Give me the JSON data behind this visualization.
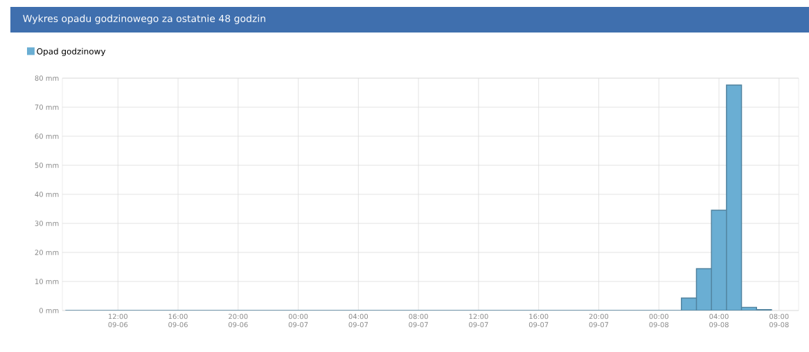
{
  "chart_data": {
    "type": "bar",
    "title": "Wykres opadu godzinowego za ostatnie 48 godzin",
    "categories": [
      null,
      null,
      null,
      "12:00 09-06",
      null,
      null,
      null,
      "16:00 09-06",
      null,
      null,
      null,
      "20:00 09-06",
      null,
      null,
      null,
      "00:00 09-07",
      null,
      null,
      null,
      "04:00 09-07",
      null,
      null,
      null,
      "08:00 09-07",
      null,
      null,
      null,
      "12:00 09-07",
      null,
      null,
      null,
      "16:00 09-07",
      null,
      null,
      null,
      "20:00 09-07",
      null,
      null,
      null,
      "00:00 09-08",
      null,
      null,
      null,
      "04:00 09-08",
      null,
      null,
      null,
      "08:00 09-08"
    ],
    "series": [
      {
        "name": "Opad godzinowy",
        "color": "#6aaed3",
        "values": [
          0,
          0,
          0,
          0,
          0,
          0,
          0,
          0,
          0,
          0,
          0,
          0,
          0,
          0,
          0,
          0,
          0,
          0,
          0,
          0,
          0,
          0,
          0,
          0,
          0,
          0,
          0,
          0,
          0,
          0,
          0,
          0,
          0,
          0,
          0,
          0,
          0,
          0,
          0,
          0,
          0,
          4.3,
          14.4,
          34.5,
          77.6,
          1.1,
          0.3,
          null
        ]
      }
    ],
    "ylim": [
      0,
      80
    ],
    "yticks": [
      {
        "value": 0,
        "label": "0 mm"
      },
      {
        "value": 10,
        "label": "10 mm"
      },
      {
        "value": 20,
        "label": "20 mm"
      },
      {
        "value": 30,
        "label": "30 mm"
      },
      {
        "value": 40,
        "label": "40 mm"
      },
      {
        "value": 50,
        "label": "50 mm"
      },
      {
        "value": 60,
        "label": "60 mm"
      },
      {
        "value": 70,
        "label": "70 mm"
      },
      {
        "value": 80,
        "label": "80 mm"
      }
    ],
    "grid": true,
    "legend": "top left"
  }
}
